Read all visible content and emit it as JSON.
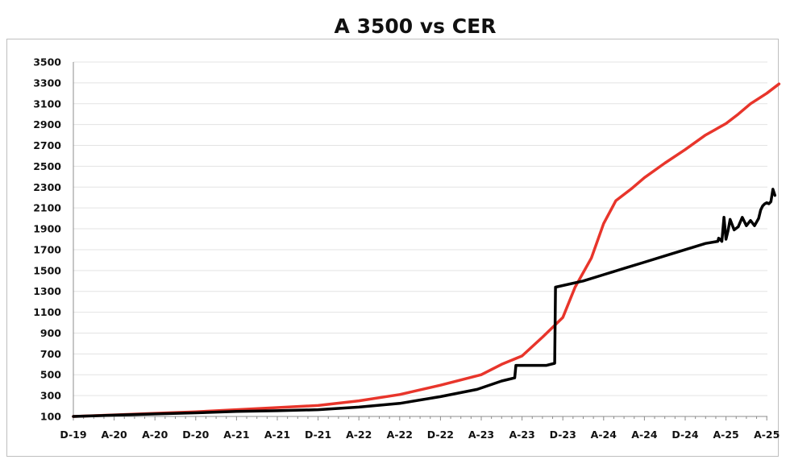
{
  "chart_data": {
    "type": "line",
    "title": "A 3500 vs CER",
    "xlabel": "",
    "ylabel": "",
    "ylim": [
      100,
      3500
    ],
    "yticks": [
      100,
      300,
      500,
      700,
      900,
      1100,
      1300,
      1500,
      1700,
      1900,
      2100,
      2300,
      2500,
      2700,
      2900,
      3100,
      3300,
      3500
    ],
    "xtick_labels": [
      "D-19",
      "A-20",
      "A-20",
      "D-20",
      "A-21",
      "A-21",
      "D-21",
      "A-22",
      "A-22",
      "D-22",
      "A-23",
      "A-23",
      "D-23",
      "A-24",
      "A-24",
      "D-24",
      "A-25",
      "A-25"
    ],
    "xlim": [
      0,
      17.3
    ],
    "grid": true,
    "series": [
      {
        "name": "CER",
        "color": "#e8352b",
        "x": [
          0,
          1,
          2,
          3,
          4,
          5,
          6,
          7,
          8,
          9,
          10,
          10.5,
          11,
          11.5,
          12,
          12.3,
          12.7,
          13,
          13.3,
          13.7,
          14,
          14.5,
          15,
          15.5,
          16,
          16.3,
          16.6,
          17,
          17.3
        ],
        "y": [
          100,
          115,
          130,
          145,
          165,
          185,
          205,
          250,
          310,
          400,
          500,
          600,
          680,
          860,
          1050,
          1340,
          1620,
          1950,
          2170,
          2290,
          2390,
          2530,
          2660,
          2800,
          2910,
          3000,
          3100,
          3200,
          3290
        ]
      },
      {
        "name": "A 3500",
        "color": "#000000",
        "x": [
          0,
          1,
          2,
          3,
          4,
          5,
          6,
          7,
          8,
          9,
          9.9,
          10.5,
          10.82,
          10.85,
          11.6,
          11.8,
          11.82,
          12.5,
          13,
          13.5,
          14,
          14.5,
          15,
          15.5,
          15.8,
          15.82,
          15.85,
          15.9,
          15.95,
          16.0,
          16.05,
          16.1,
          16.2,
          16.3,
          16.4,
          16.5,
          16.6,
          16.7,
          16.8,
          16.85,
          16.9,
          16.95,
          17.0,
          17.05,
          17.1,
          17.15,
          17.2
        ],
        "y": [
          100,
          112,
          124,
          135,
          148,
          155,
          165,
          190,
          225,
          290,
          360,
          440,
          470,
          590,
          590,
          610,
          1340,
          1400,
          1460,
          1520,
          1580,
          1640,
          1700,
          1760,
          1780,
          1810,
          1800,
          1780,
          2010,
          1800,
          1880,
          1990,
          1890,
          1920,
          2010,
          1930,
          1980,
          1930,
          2000,
          2080,
          2120,
          2140,
          2150,
          2140,
          2160,
          2280,
          2220
        ]
      }
    ]
  }
}
